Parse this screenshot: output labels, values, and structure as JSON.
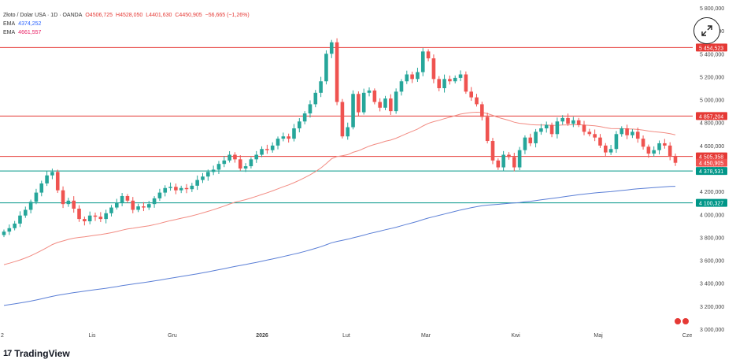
{
  "legend": {
    "symbol": "Złoto / Dolar USA · 1D · OANDA",
    "o": "O4506,725",
    "h": "H4528,050",
    "l": "L4401,630",
    "c": "C4450,905",
    "chg": "−56,665 (−1,26%)",
    "ema1_label": "EMA",
    "ema1_value": "4374,252",
    "ema2_label": "EMA",
    "ema2_value": "4661,557"
  },
  "brand": {
    "logo": "17",
    "name": "TradingView"
  },
  "colors": {
    "up": "#26a69a",
    "down": "#ef5350",
    "ema_fast": "#f28b82",
    "ema_slow": "#5b7fd6",
    "resistance": "#e53935",
    "support": "#009688"
  },
  "chart_data": {
    "type": "candlestick",
    "ylim": [
      3000,
      5800
    ],
    "y_ticks": [
      "3 000,000",
      "3 200,000",
      "3 400,000",
      "3 600,000",
      "3 800,000",
      "4 000,000",
      "4 200,000",
      "4 400,000",
      "4 600,000",
      "4 800,000",
      "5 000,000",
      "5 200,000",
      "5 400,000",
      "5 600,000",
      "5 800,000"
    ],
    "x_labels": [
      "2",
      "Lis",
      "Gru",
      "2026",
      "Lut",
      "Mar",
      "Kwi",
      "Maj",
      "Cze"
    ],
    "horizontal_levels": [
      {
        "value": 5454.523,
        "label": "5 454,523",
        "kind": "resistance"
      },
      {
        "value": 4857.204,
        "label": "4 857,204",
        "kind": "resistance"
      },
      {
        "value": 4505.358,
        "label": "4 505,358",
        "kind": "resistance"
      },
      {
        "value": 4378.531,
        "label": "4 378,531",
        "kind": "support"
      },
      {
        "value": 4100.327,
        "label": "4 100,327",
        "kind": "support"
      }
    ],
    "last_price": {
      "value": 4450.905,
      "label": "4 450,905"
    },
    "closes": [
      3850,
      3880,
      3920,
      3990,
      4040,
      4110,
      4190,
      4270,
      4340,
      4370,
      4210,
      4090,
      4120,
      4050,
      3960,
      3940,
      3990,
      3980,
      3960,
      4010,
      4060,
      4100,
      4160,
      4120,
      4040,
      4070,
      4060,
      4090,
      4140,
      4190,
      4230,
      4240,
      4210,
      4230,
      4220,
      4250,
      4300,
      4330,
      4370,
      4390,
      4440,
      4470,
      4520,
      4480,
      4400,
      4420,
      4480,
      4520,
      4570,
      4560,
      4600,
      4660,
      4680,
      4660,
      4750,
      4810,
      4880,
      4960,
      5060,
      5160,
      5400,
      5500,
      4980,
      4680,
      4760,
      5050,
      4890,
      5060,
      5080,
      4980,
      4930,
      5010,
      4900,
      5070,
      5160,
      5220,
      5180,
      5240,
      5420,
      5360,
      5180,
      5100,
      5180,
      5160,
      5190,
      5220,
      5070,
      5020,
      4960,
      4850,
      4640,
      4470,
      4410,
      4520,
      4500,
      4410,
      4560,
      4670,
      4620,
      4720,
      4750,
      4780,
      4700,
      4810,
      4840,
      4790,
      4820,
      4780,
      4720,
      4700,
      4670,
      4600,
      4540,
      4570,
      4700,
      4750,
      4690,
      4720,
      4660,
      4590,
      4530,
      4560,
      4620,
      4600,
      4510,
      4450
    ]
  }
}
